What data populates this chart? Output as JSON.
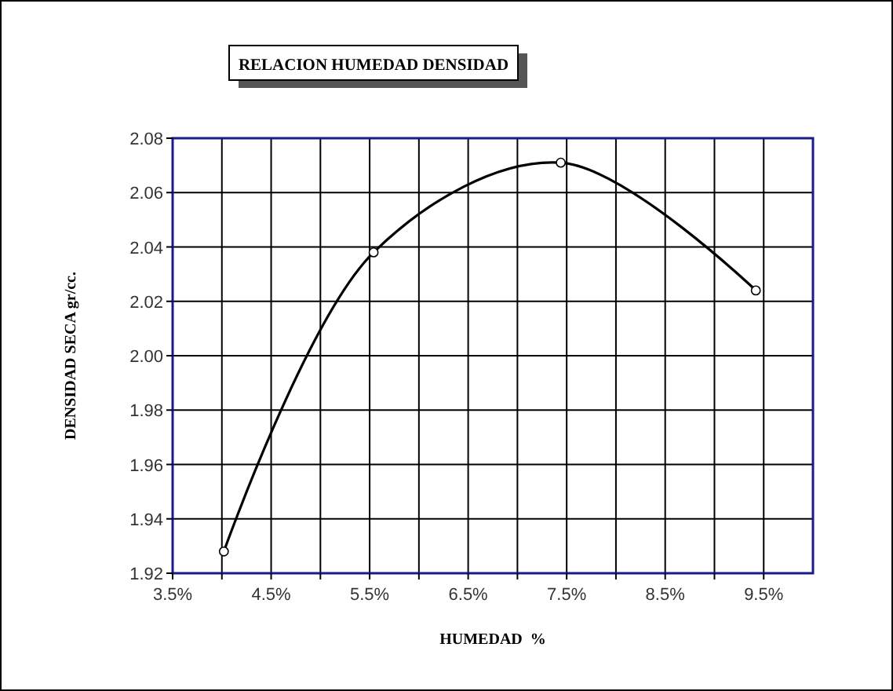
{
  "chart_data": {
    "type": "line",
    "title": "RELACION HUMEDAD DENSIDAD",
    "xlabel": "HUMEDAD  %",
    "ylabel": "DENSIDAD SECA gr/cc.",
    "series": [
      {
        "color": "#000000",
        "x": [
          4.02,
          5.54,
          7.44,
          9.42
        ],
        "values": [
          1.928,
          2.038,
          2.071,
          2.024
        ]
      }
    ],
    "xlim": [
      3.5,
      10
    ],
    "xticks": [
      {
        "value": 3.5,
        "label": "3.5%"
      },
      {
        "value": 4,
        "label": null
      },
      {
        "value": 4.5,
        "label": "4.5%"
      },
      {
        "value": 5,
        "label": null
      },
      {
        "value": 5.5,
        "label": "5.5%"
      },
      {
        "value": 6,
        "label": null
      },
      {
        "value": 6.5,
        "label": "6.5%"
      },
      {
        "value": 7,
        "label": null
      },
      {
        "value": 7.5,
        "label": "7.5%"
      },
      {
        "value": 8,
        "label": null
      },
      {
        "value": 8.5,
        "label": "8.5%"
      },
      {
        "value": 9,
        "label": null
      },
      {
        "value": 9.5,
        "label": "9.5%"
      }
    ],
    "ylim": [
      1.92,
      2.08
    ],
    "yticks": [
      {
        "value": 1.92,
        "label": "1.92"
      },
      {
        "value": 1.94,
        "label": "1.94"
      },
      {
        "value": 1.96,
        "label": "1.96"
      },
      {
        "value": 1.98,
        "label": "1.98"
      },
      {
        "value": 2.0,
        "label": "2.00"
      },
      {
        "value": 2.02,
        "label": "2.02"
      },
      {
        "value": 2.04,
        "label": "2.04"
      },
      {
        "value": 2.06,
        "label": "2.06"
      },
      {
        "value": 2.08,
        "label": "2.08"
      }
    ],
    "grid": true,
    "marker": "circle",
    "line_style": "solid"
  }
}
